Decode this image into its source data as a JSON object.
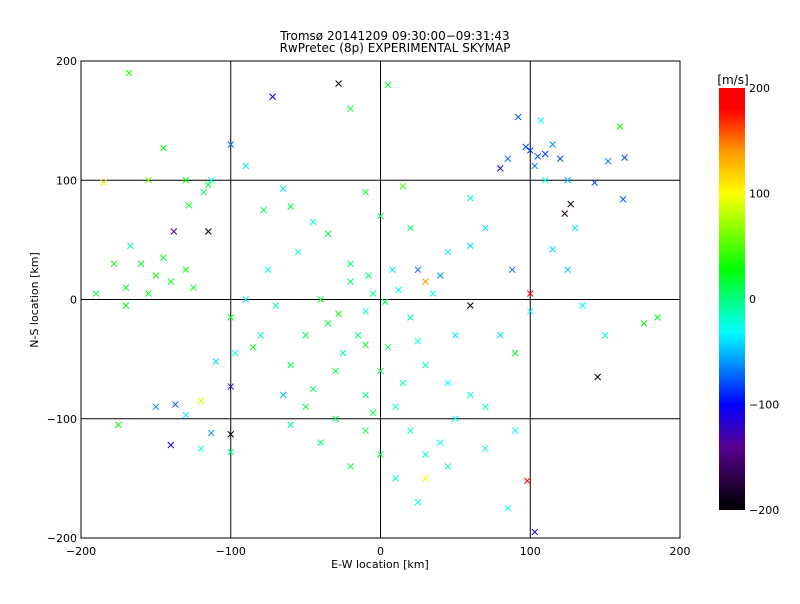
{
  "chart_data": {
    "type": "scatter",
    "title": "Tromsø 20141209 09:30:00−09:31:43",
    "subtitle": "RwPretec (8p) EXPERIMENTAL SKYMAP",
    "xlabel": "E-W location [km]",
    "ylabel": "N-S location [km]",
    "xlim": [
      -200,
      200
    ],
    "ylim": [
      -200,
      200
    ],
    "xticks": [
      -200,
      -100,
      0,
      100,
      200
    ],
    "yticks": [
      -200,
      -100,
      0,
      100,
      200
    ],
    "xtick_labels": [
      "−200",
      "−100",
      "0",
      "100",
      "200"
    ],
    "ytick_labels": [
      "−200",
      "−100",
      "0",
      "100",
      "200"
    ],
    "grid": true,
    "colorbar": {
      "label": "[m/s]",
      "range": [
        -200,
        200
      ],
      "ticks": [
        200,
        100,
        0,
        -100,
        -200
      ],
      "tick_labels": [
        "200",
        "100",
        "0",
        "−100",
        "−200"
      ]
    },
    "point_format": [
      "x_km",
      "y_km",
      "velocity_m_s",
      "marker"
    ],
    "points": [
      [
        -5,
        5,
        0,
        "x"
      ],
      [
        3,
        -2,
        10,
        "x"
      ],
      [
        -10,
        -10,
        -20,
        "x"
      ],
      [
        12,
        8,
        -30,
        "x"
      ],
      [
        -20,
        15,
        5,
        "x"
      ],
      [
        20,
        -15,
        -10,
        "x"
      ],
      [
        -15,
        -30,
        0,
        "x"
      ],
      [
        5,
        -40,
        10,
        "x"
      ],
      [
        -25,
        -45,
        -5,
        "x"
      ],
      [
        25,
        -35,
        -25,
        "x"
      ],
      [
        0,
        -60,
        5,
        "x"
      ],
      [
        -30,
        -60,
        15,
        "x"
      ],
      [
        15,
        -70,
        -15,
        "x"
      ],
      [
        -10,
        -80,
        0,
        "x"
      ],
      [
        10,
        -90,
        -20,
        "x"
      ],
      [
        -5,
        -95,
        10,
        "x"
      ],
      [
        30,
        -55,
        -10,
        "x"
      ],
      [
        -35,
        -20,
        10,
        "x"
      ],
      [
        35,
        5,
        -30,
        "x"
      ],
      [
        -40,
        0,
        20,
        "x"
      ],
      [
        40,
        20,
        -60,
        "x"
      ],
      [
        30,
        15,
        140,
        "x"
      ],
      [
        25,
        25,
        -70,
        "x"
      ],
      [
        -20,
        30,
        10,
        "x"
      ],
      [
        -8,
        20,
        5,
        "x"
      ],
      [
        8,
        25,
        -40,
        "x"
      ],
      [
        50,
        -30,
        -40,
        "x"
      ],
      [
        45,
        -70,
        -30,
        "x"
      ],
      [
        -45,
        -75,
        5,
        "x"
      ],
      [
        60,
        -80,
        -30,
        "x"
      ],
      [
        70,
        -90,
        -20,
        "x"
      ],
      [
        20,
        -110,
        -20,
        "x"
      ],
      [
        -10,
        -110,
        10,
        "x"
      ],
      [
        30,
        -150,
        100,
        "x"
      ],
      [
        98,
        -152,
        200,
        "x"
      ],
      [
        60,
        -5,
        -200,
        "x"
      ],
      [
        -100,
        -113,
        -200,
        "x"
      ],
      [
        -120,
        -85,
        90,
        "x"
      ],
      [
        -113,
        -112,
        -60,
        "x"
      ],
      [
        -100,
        -73,
        -120,
        "x"
      ],
      [
        -97,
        -45,
        -30,
        "x"
      ],
      [
        -110,
        -52,
        -40,
        "x"
      ],
      [
        -65,
        -80,
        -50,
        "x"
      ],
      [
        -60,
        -105,
        -10,
        "x"
      ],
      [
        -150,
        -90,
        -60,
        "x"
      ],
      [
        -137,
        -88,
        -80,
        "x"
      ],
      [
        -130,
        -97,
        -40,
        "x"
      ],
      [
        -120,
        -125,
        -20,
        "x"
      ],
      [
        -160,
        30,
        20,
        "x"
      ],
      [
        -150,
        20,
        25,
        "x"
      ],
      [
        -140,
        15,
        20,
        "x"
      ],
      [
        -130,
        25,
        30,
        "x"
      ],
      [
        -145,
        35,
        15,
        "x"
      ],
      [
        -125,
        10,
        20,
        "x"
      ],
      [
        -170,
        10,
        25,
        "x"
      ],
      [
        -155,
        5,
        20,
        "x"
      ],
      [
        -138,
        57,
        -130,
        "x"
      ],
      [
        -115,
        57,
        -200,
        "x"
      ],
      [
        -185,
        98,
        110,
        "x"
      ],
      [
        -155,
        100,
        60,
        "x"
      ],
      [
        -145,
        127,
        30,
        "x"
      ],
      [
        -130,
        100,
        30,
        "x"
      ],
      [
        -113,
        100,
        -20,
        "x"
      ],
      [
        -118,
        90,
        5,
        "x"
      ],
      [
        -167,
        45,
        -10,
        "x"
      ],
      [
        -128,
        79,
        20,
        "x"
      ],
      [
        -168,
        190,
        35,
        "x"
      ],
      [
        -100,
        130,
        -70,
        "x"
      ],
      [
        -90,
        112,
        -40,
        "x"
      ],
      [
        -78,
        75,
        10,
        "x"
      ],
      [
        -65,
        93,
        -40,
        "x"
      ],
      [
        -60,
        78,
        15,
        "x"
      ],
      [
        -45,
        65,
        -20,
        "x"
      ],
      [
        -35,
        55,
        10,
        "x"
      ],
      [
        -28,
        -12,
        30,
        "x"
      ],
      [
        -10,
        -38,
        25,
        "x"
      ],
      [
        -28,
        181,
        -200,
        "x"
      ],
      [
        -20,
        160,
        10,
        "x"
      ],
      [
        5,
        180,
        15,
        "x"
      ],
      [
        -72,
        170,
        -100,
        "x"
      ],
      [
        -115,
        96,
        15,
        "x"
      ],
      [
        15,
        95,
        50,
        "x"
      ],
      [
        92,
        153,
        -80,
        "x"
      ],
      [
        97,
        128,
        -80,
        "x"
      ],
      [
        100,
        125,
        -90,
        "x"
      ],
      [
        105,
        120,
        -75,
        "x"
      ],
      [
        110,
        122,
        -85,
        "x"
      ],
      [
        115,
        130,
        -60,
        "x"
      ],
      [
        120,
        118,
        -80,
        "x"
      ],
      [
        103,
        112,
        -70,
        "x"
      ],
      [
        85,
        118,
        -70,
        "x"
      ],
      [
        80,
        110,
        -100,
        "x"
      ],
      [
        107,
        150,
        -30,
        "x"
      ],
      [
        110,
        100,
        -30,
        "x"
      ],
      [
        125,
        100,
        -50,
        "x"
      ],
      [
        127,
        80,
        -200,
        "x"
      ],
      [
        123,
        72,
        -180,
        "x"
      ],
      [
        143,
        98,
        -80,
        "x"
      ],
      [
        152,
        116,
        -70,
        "x"
      ],
      [
        163,
        119,
        -80,
        "x"
      ],
      [
        160,
        145,
        30,
        "x"
      ],
      [
        162,
        84,
        -80,
        "x"
      ],
      [
        130,
        60,
        -40,
        "x"
      ],
      [
        115,
        42,
        -40,
        "x"
      ],
      [
        125,
        25,
        -50,
        "x"
      ],
      [
        88,
        25,
        -70,
        "x"
      ],
      [
        135,
        -5,
        -30,
        "x"
      ],
      [
        100,
        5,
        200,
        "x"
      ],
      [
        176,
        -20,
        30,
        "x"
      ],
      [
        185,
        -15,
        25,
        "x"
      ],
      [
        145,
        -65,
        -200,
        "x"
      ],
      [
        150,
        -30,
        -20,
        "x"
      ],
      [
        100,
        -10,
        -30,
        "x"
      ],
      [
        80,
        -30,
        -40,
        "x"
      ],
      [
        90,
        -45,
        20,
        "x"
      ],
      [
        70,
        60,
        -40,
        "x"
      ],
      [
        60,
        45,
        -40,
        "x"
      ],
      [
        45,
        40,
        -30,
        "x"
      ],
      [
        20,
        60,
        10,
        "x"
      ],
      [
        0,
        70,
        10,
        "x"
      ],
      [
        -10,
        90,
        20,
        "x"
      ],
      [
        60,
        85,
        -20,
        "x"
      ],
      [
        50,
        -100,
        -30,
        "x"
      ],
      [
        40,
        -120,
        -25,
        "x"
      ],
      [
        25,
        -170,
        -30,
        "x"
      ],
      [
        10,
        -150,
        -20,
        "x"
      ],
      [
        -20,
        -140,
        10,
        "x"
      ],
      [
        -40,
        -120,
        5,
        "x"
      ],
      [
        103,
        -195,
        -120,
        "x"
      ],
      [
        85,
        -175,
        -30,
        "x"
      ],
      [
        -60,
        -55,
        10,
        "x"
      ],
      [
        -80,
        -30,
        -20,
        "x"
      ],
      [
        -90,
        0,
        -40,
        "x"
      ],
      [
        -75,
        25,
        -30,
        "x"
      ],
      [
        -55,
        40,
        -30,
        "x"
      ],
      [
        -70,
        -5,
        -10,
        "x"
      ],
      [
        -50,
        -30,
        10,
        "x"
      ],
      [
        -100,
        -15,
        20,
        "x"
      ],
      [
        -85,
        -40,
        20,
        "x"
      ],
      [
        -30,
        -100,
        10,
        "x"
      ],
      [
        -50,
        -90,
        20,
        "x"
      ],
      [
        0,
        -130,
        10,
        "x"
      ],
      [
        30,
        -130,
        -20,
        "x"
      ],
      [
        45,
        -140,
        -10,
        "x"
      ],
      [
        70,
        -125,
        -20,
        "x"
      ],
      [
        90,
        -110,
        -30,
        "x"
      ],
      [
        -170,
        -5,
        25,
        "x"
      ],
      [
        -178,
        30,
        35,
        "x"
      ],
      [
        -190,
        5,
        10,
        "x"
      ],
      [
        -175,
        -105,
        30,
        "x"
      ],
      [
        -140,
        -122,
        -100,
        "x"
      ],
      [
        -100,
        -128,
        0,
        "x"
      ]
    ]
  }
}
